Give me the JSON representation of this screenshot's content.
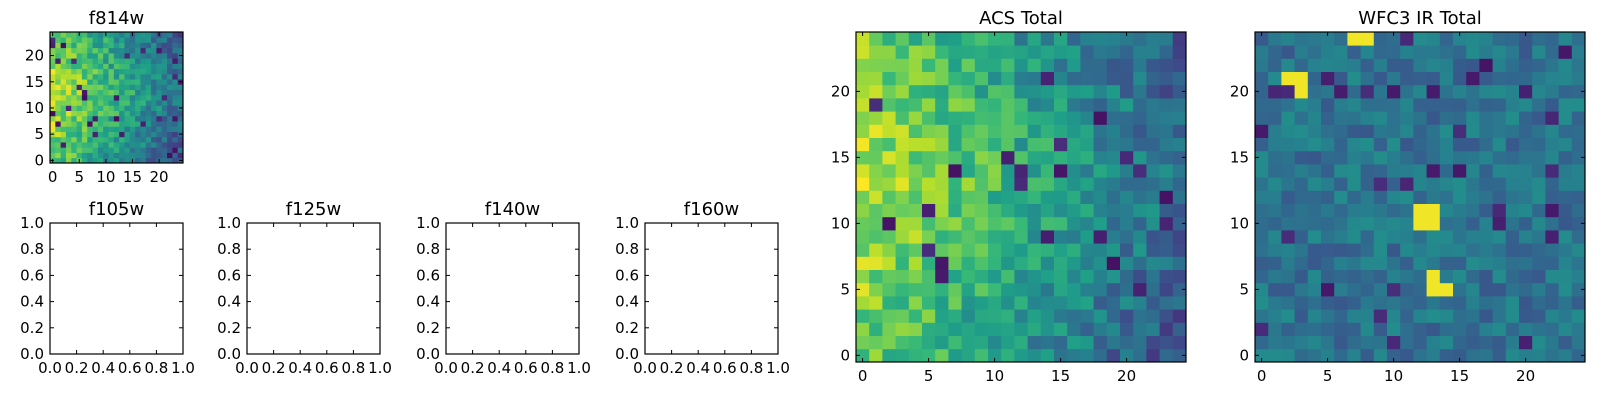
{
  "chart_data": [
    {
      "type": "heatmap",
      "title": "f814w",
      "xlim": [
        0,
        25
      ],
      "ylim": [
        0,
        25
      ],
      "xticks": [
        0,
        5,
        10,
        15,
        20
      ],
      "yticks": [
        0,
        5,
        10,
        15,
        20
      ],
      "grid": false,
      "legend": "none",
      "colormap": "viridis",
      "values_note": "",
      "values": []
    },
    {
      "type": "heatmap",
      "title": "f105w",
      "xlim": [
        0,
        1
      ],
      "ylim": [
        0,
        1
      ],
      "xticks": [
        "0.0",
        "0.2",
        "0.4",
        "0.6",
        "0.8",
        "1.0"
      ],
      "yticks": [
        "0.0",
        "0.2",
        "0.4",
        "0.6",
        "0.8",
        "1.0"
      ],
      "values": []
    },
    {
      "type": "heatmap",
      "title": "f125w",
      "xlim": [
        0,
        1
      ],
      "ylim": [
        0,
        1
      ],
      "xticks": [
        "0.0",
        "0.2",
        "0.4",
        "0.6",
        "0.8",
        "1.0"
      ],
      "yticks": [
        "0.0",
        "0.2",
        "0.4",
        "0.6",
        "0.8",
        "1.0"
      ],
      "values": []
    },
    {
      "type": "heatmap",
      "title": "f140w",
      "xlim": [
        0,
        1
      ],
      "ylim": [
        0,
        1
      ],
      "xticks": [
        "0.0",
        "0.2",
        "0.4",
        "0.6",
        "0.8",
        "1.0"
      ],
      "yticks": [
        "0.0",
        "0.2",
        "0.4",
        "0.6",
        "0.8",
        "1.0"
      ],
      "values": []
    },
    {
      "type": "heatmap",
      "title": "f160w",
      "xlim": [
        0,
        1
      ],
      "ylim": [
        0,
        1
      ],
      "xticks": [
        "0.0",
        "0.2",
        "0.4",
        "0.6",
        "0.8",
        "1.0"
      ],
      "yticks": [
        "0.0",
        "0.2",
        "0.4",
        "0.6",
        "0.8",
        "1.0"
      ],
      "values": []
    },
    {
      "type": "heatmap",
      "title": "ACS Total",
      "xlim": [
        0,
        25
      ],
      "ylim": [
        0,
        25
      ],
      "xticks": [
        0,
        5,
        10,
        15,
        20
      ],
      "yticks": [
        0,
        5,
        10,
        15,
        20
      ],
      "colormap": "viridis",
      "values": []
    },
    {
      "type": "heatmap",
      "title": "WFC3 IR Total",
      "xlim": [
        0,
        25
      ],
      "ylim": [
        0,
        25
      ],
      "xticks": [
        0,
        5,
        10,
        15,
        20
      ],
      "yticks": [
        0,
        5,
        10,
        15,
        20
      ],
      "colormap": "viridis",
      "values": []
    }
  ]
}
